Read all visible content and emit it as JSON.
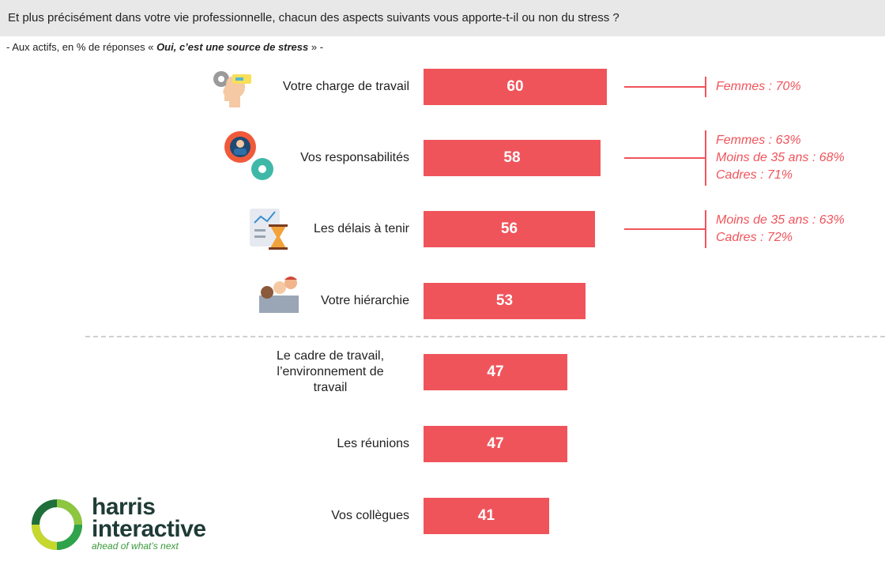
{
  "header": {
    "title": "Et plus précisément dans votre vie professionnelle, chacun des aspects suivants vous apporte-t-il ou non du stress ?",
    "subtitle_prefix": "- Aux actifs, en % de réponses « ",
    "subtitle_emphasis": "Oui, c’est une source de stress",
    "subtitle_suffix": " » -"
  },
  "colors": {
    "bar": "#f0545b",
    "header_bg": "#e8e8e8",
    "divider": "#cfcfcf",
    "note": "#f0545b"
  },
  "chart_data": {
    "type": "bar",
    "orientation": "horizontal",
    "unit": "%",
    "xlim": [
      0,
      100
    ],
    "categories": [
      "Votre charge de travail",
      "Vos responsabilités",
      "Les délais à tenir",
      "Votre hiérarchie",
      "Le cadre de travail, l’environnement de travail",
      "Les réunions",
      "Vos collègues"
    ],
    "values": [
      60,
      58,
      56,
      53,
      47,
      47,
      41
    ],
    "category_lines": [
      [
        "Votre charge de travail"
      ],
      [
        "Vos responsabilités"
      ],
      [
        "Les délais à tenir"
      ],
      [
        "Votre hiérarchie"
      ],
      [
        "Le cadre de travail,",
        "l’environnement de",
        "travail"
      ],
      [
        "Les réunions"
      ],
      [
        "Vos collègues"
      ]
    ],
    "annotations": [
      [
        "Femmes : 70%"
      ],
      [
        "Femmes : 63%",
        "Moins de 35 ans : 68%",
        "Cadres : 71%"
      ],
      [
        "Moins de 35 ans : 63%",
        "Cadres : 72%"
      ],
      [],
      [],
      [],
      []
    ],
    "icons": [
      "head-gears-icon",
      "person-gear-icon",
      "hourglass-chart-icon",
      "team-icon",
      "",
      "",
      ""
    ],
    "separator_after_index": 3
  },
  "logo": {
    "name_line1": "harris",
    "name_line2": "interactive",
    "tagline": "ahead of what’s next"
  }
}
